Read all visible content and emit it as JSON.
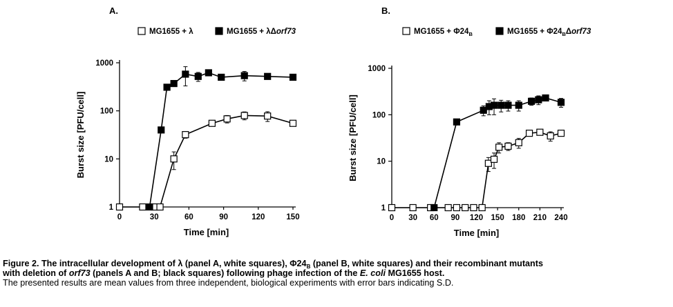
{
  "figure": {
    "panels": [
      {
        "panel_label": "A."
      },
      {
        "panel_label": "B."
      }
    ]
  },
  "chart_data": [
    {
      "type": "scatter",
      "panel": "A.",
      "title": "",
      "xlabel": "Time [min]",
      "ylabel": "Burst size [PFU/cell]",
      "y_scale": "log",
      "xlim": [
        0,
        150
      ],
      "ylim": [
        1,
        1000
      ],
      "x_ticks": [
        0,
        30,
        60,
        90,
        120,
        150
      ],
      "x_tick_labels": [
        "0",
        "30",
        "60",
        "90",
        "120",
        "150"
      ],
      "y_ticks": [
        1,
        10,
        100,
        1000
      ],
      "y_tick_labels": [
        "1",
        "10",
        "100",
        "1000"
      ],
      "grid": false,
      "legend_position": "top",
      "series": [
        {
          "name": "MG1655 + λ",
          "marker": "open-square",
          "color": "#000000",
          "fill": "#ffffff",
          "x": [
            0,
            20,
            30,
            35,
            47,
            57,
            80,
            93,
            108,
            128,
            150
          ],
          "y": [
            1,
            1,
            1,
            1,
            10,
            32,
            55,
            68,
            80,
            78,
            55
          ],
          "error": [
            0,
            0,
            0,
            0,
            4,
            5,
            6,
            12,
            15,
            18,
            4
          ]
        },
        {
          "name": "MG1655 + λΔorf73",
          "marker": "filled-square",
          "color": "#000000",
          "fill": "#000000",
          "x": [
            26,
            36,
            41,
            47,
            57,
            68,
            77,
            88,
            108,
            128,
            150
          ],
          "y": [
            1,
            40,
            310,
            370,
            580,
            520,
            620,
            500,
            540,
            520,
            500
          ],
          "error": [
            0,
            5,
            25,
            30,
            250,
            110,
            60,
            40,
            120,
            60,
            50
          ]
        }
      ]
    },
    {
      "type": "scatter",
      "panel": "B.",
      "title": "",
      "xlabel": "Time [min]",
      "ylabel": "Burst size [PFU/cell]",
      "y_scale": "log",
      "xlim": [
        0,
        240
      ],
      "ylim": [
        1,
        1000
      ],
      "x_ticks": [
        0,
        30,
        60,
        90,
        120,
        150,
        180,
        210,
        240
      ],
      "x_tick_labels": [
        "0",
        "30",
        "60",
        "90",
        "120",
        "150",
        "180",
        "210",
        "240"
      ],
      "y_ticks": [
        1,
        10,
        100,
        1000
      ],
      "y_tick_labels": [
        "1",
        "10",
        "100",
        "1000"
      ],
      "grid": false,
      "legend_position": "top",
      "series": [
        {
          "name": "MG1655 + Φ24B",
          "marker": "open-square",
          "color": "#000000",
          "fill": "#ffffff",
          "x": [
            0,
            30,
            55,
            80,
            92,
            104,
            116,
            128,
            137,
            145,
            152,
            165,
            180,
            195,
            210,
            225,
            240
          ],
          "y": [
            1,
            1,
            1,
            1,
            1,
            1,
            1,
            1,
            9,
            11,
            20,
            21,
            25,
            40,
            42,
            35,
            40
          ],
          "error": [
            0,
            0,
            0,
            0,
            0,
            0,
            0,
            0,
            3,
            4,
            5,
            4,
            6,
            4,
            5,
            8,
            5
          ]
        },
        {
          "name": "MG1655 + Φ24BΔorf73",
          "marker": "filled-square",
          "color": "#000000",
          "fill": "#000000",
          "x": [
            60,
            92,
            130,
            138,
            145,
            155,
            165,
            180,
            198,
            208,
            218,
            240
          ],
          "y": [
            1,
            70,
            125,
            150,
            160,
            160,
            160,
            160,
            195,
            210,
            230,
            185
          ],
          "error": [
            0,
            5,
            30,
            50,
            60,
            45,
            40,
            40,
            35,
            45,
            30,
            40
          ]
        }
      ]
    }
  ],
  "caption": {
    "line1_prefix": "Figure 2. The intracellular development of λ (panel A, white squares), Φ24",
    "line1_sub": "B",
    "line1_suffix": " (panel B, white squares) and their recombinant mutants",
    "line2_prefix": "with deletion of ",
    "line2_italic1": "orf73",
    "line2_middle": " (panels A and B; black squares) following phage infection of the ",
    "line2_italic2": "E. coli",
    "line2_suffix": " MG1655 host.",
    "line3": "The presented results are mean values from three independent, biological experiments with error bars indicating S.D."
  }
}
